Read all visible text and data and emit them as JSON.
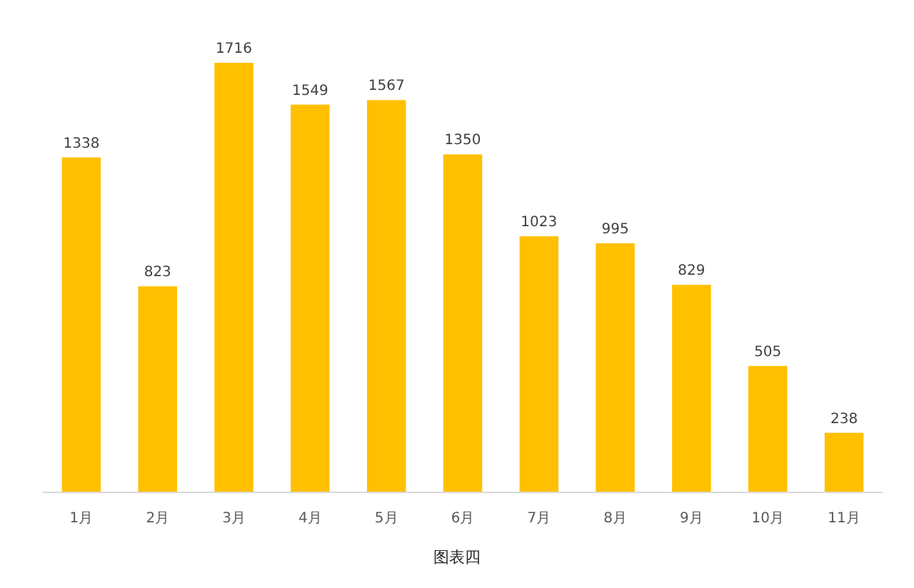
{
  "chart_data": {
    "type": "bar",
    "title": "图表四",
    "categories": [
      "1月",
      "2月",
      "3月",
      "4月",
      "5月",
      "6月",
      "7月",
      "8月",
      "9月",
      "10月",
      "11月"
    ],
    "values": [
      1338,
      823,
      1716,
      1549,
      1567,
      1350,
      1023,
      995,
      829,
      505,
      238
    ],
    "color": "#ffc000",
    "data_labels": true
  }
}
